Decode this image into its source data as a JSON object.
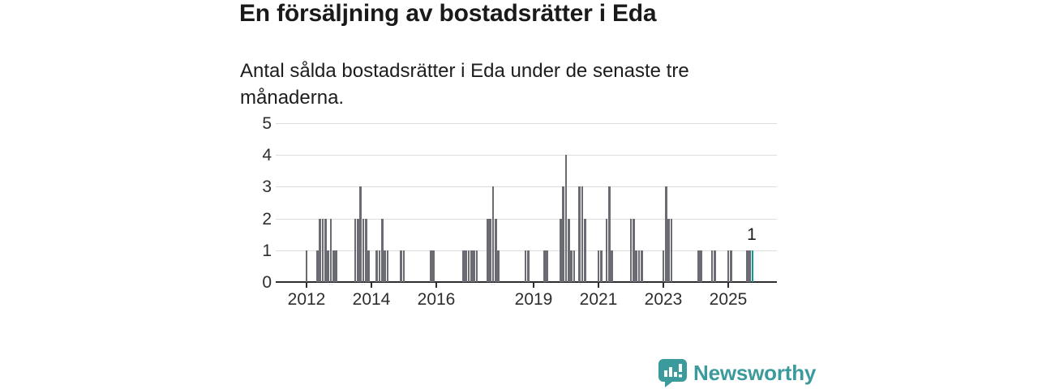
{
  "header": {
    "title": "En försäljning av bostadsrätter i Eda",
    "subtitle": "Antal sålda bostadsrätter i Eda under de senaste tre månaderna."
  },
  "footer": {
    "brand": "Newsworthy",
    "logo_icon": "speech-bubble-bar-chart-icon"
  },
  "colors": {
    "bar": "#6b6b73",
    "highlight": "#00a396",
    "grid": "#dddddd",
    "axis": "#2d2d30",
    "tick_text": "#2e2e31",
    "annotation_text": "#1d1d1f",
    "brand": "#3a9a9c"
  },
  "chart_data": {
    "type": "bar",
    "title": "En försäljning av bostadsrätter i Eda",
    "subtitle": "Antal sålda bostadsrätter i Eda under de senaste tre månaderna.",
    "xlabel": "",
    "ylabel": "",
    "ylim": [
      0,
      5
    ],
    "y_ticks": [
      0,
      1,
      2,
      3,
      4,
      5
    ],
    "x_tick_years": [
      2012,
      2014,
      2016,
      2019,
      2021,
      2023,
      2025
    ],
    "x_domain_months": [
      "2011-01",
      "2026-06"
    ],
    "grid": "horizontal",
    "legend": "none",
    "annotation": {
      "label": "1",
      "month": "2025-10"
    },
    "highlight_month": "2025-10",
    "points": [
      {
        "m": "2012-01",
        "v": 1
      },
      {
        "m": "2012-05",
        "v": 1
      },
      {
        "m": "2012-06",
        "v": 2
      },
      {
        "m": "2012-07",
        "v": 2
      },
      {
        "m": "2012-08",
        "v": 2
      },
      {
        "m": "2012-09",
        "v": 1
      },
      {
        "m": "2012-10",
        "v": 2
      },
      {
        "m": "2012-11",
        "v": 1
      },
      {
        "m": "2012-12",
        "v": 1
      },
      {
        "m": "2013-07",
        "v": 2
      },
      {
        "m": "2013-08",
        "v": 2
      },
      {
        "m": "2013-09",
        "v": 3
      },
      {
        "m": "2013-10",
        "v": 2
      },
      {
        "m": "2013-11",
        "v": 2
      },
      {
        "m": "2013-12",
        "v": 1
      },
      {
        "m": "2014-03",
        "v": 1
      },
      {
        "m": "2014-04",
        "v": 1
      },
      {
        "m": "2014-05",
        "v": 2
      },
      {
        "m": "2014-06",
        "v": 1
      },
      {
        "m": "2014-07",
        "v": 1
      },
      {
        "m": "2014-12",
        "v": 1
      },
      {
        "m": "2015-01",
        "v": 1
      },
      {
        "m": "2015-11",
        "v": 1
      },
      {
        "m": "2015-12",
        "v": 1
      },
      {
        "m": "2016-11",
        "v": 1
      },
      {
        "m": "2016-12",
        "v": 1
      },
      {
        "m": "2017-01",
        "v": 1
      },
      {
        "m": "2017-02",
        "v": 1
      },
      {
        "m": "2017-03",
        "v": 1
      },
      {
        "m": "2017-04",
        "v": 1
      },
      {
        "m": "2017-08",
        "v": 2
      },
      {
        "m": "2017-09",
        "v": 2
      },
      {
        "m": "2017-10",
        "v": 3
      },
      {
        "m": "2017-11",
        "v": 2
      },
      {
        "m": "2017-12",
        "v": 1
      },
      {
        "m": "2018-10",
        "v": 1
      },
      {
        "m": "2018-11",
        "v": 1
      },
      {
        "m": "2019-05",
        "v": 1
      },
      {
        "m": "2019-06",
        "v": 1
      },
      {
        "m": "2019-11",
        "v": 2
      },
      {
        "m": "2019-12",
        "v": 3
      },
      {
        "m": "2020-01",
        "v": 4
      },
      {
        "m": "2020-02",
        "v": 2
      },
      {
        "m": "2020-03",
        "v": 1
      },
      {
        "m": "2020-04",
        "v": 1
      },
      {
        "m": "2020-06",
        "v": 3
      },
      {
        "m": "2020-07",
        "v": 3
      },
      {
        "m": "2020-08",
        "v": 2
      },
      {
        "m": "2021-01",
        "v": 1
      },
      {
        "m": "2021-02",
        "v": 1
      },
      {
        "m": "2021-04",
        "v": 2
      },
      {
        "m": "2021-05",
        "v": 3
      },
      {
        "m": "2021-06",
        "v": 1
      },
      {
        "m": "2022-01",
        "v": 2
      },
      {
        "m": "2022-02",
        "v": 2
      },
      {
        "m": "2022-03",
        "v": 1
      },
      {
        "m": "2022-04",
        "v": 1
      },
      {
        "m": "2022-05",
        "v": 1
      },
      {
        "m": "2023-01",
        "v": 1
      },
      {
        "m": "2023-02",
        "v": 3
      },
      {
        "m": "2023-03",
        "v": 2
      },
      {
        "m": "2023-04",
        "v": 2
      },
      {
        "m": "2024-02",
        "v": 1
      },
      {
        "m": "2024-03",
        "v": 1
      },
      {
        "m": "2024-07",
        "v": 1
      },
      {
        "m": "2024-08",
        "v": 1
      },
      {
        "m": "2025-01",
        "v": 1
      },
      {
        "m": "2025-02",
        "v": 1
      },
      {
        "m": "2025-08",
        "v": 1
      },
      {
        "m": "2025-09",
        "v": 1
      },
      {
        "m": "2025-10",
        "v": 1
      }
    ]
  }
}
